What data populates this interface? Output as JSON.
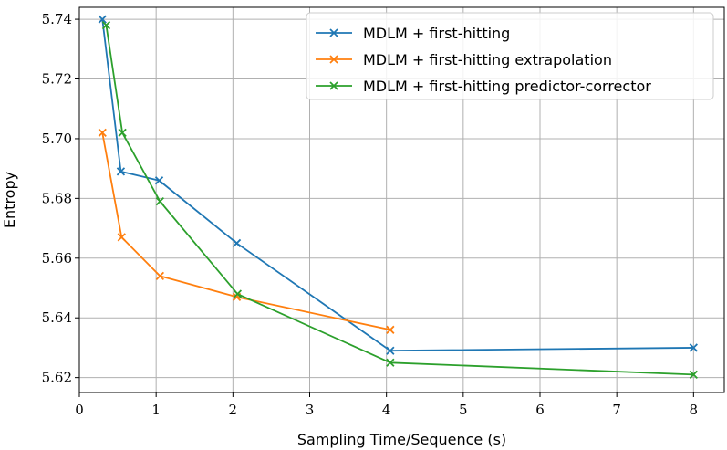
{
  "chart_data": {
    "type": "line",
    "title": "",
    "xlabel": "Sampling Time/Sequence (s)",
    "ylabel": "Entropy",
    "xlim": [
      0,
      8.4
    ],
    "ylim": [
      5.615,
      5.744
    ],
    "grid": true,
    "legend_position": "top-right",
    "x_ticks": [
      0,
      1,
      2,
      3,
      4,
      5,
      6,
      7,
      8
    ],
    "x_tick_labels": [
      "0",
      "1",
      "2",
      "3",
      "4",
      "5",
      "6",
      "7",
      "8"
    ],
    "y_ticks": [
      5.62,
      5.64,
      5.66,
      5.68,
      5.7,
      5.72,
      5.74
    ],
    "y_tick_labels": [
      "5.62",
      "5.64",
      "5.66",
      "5.68",
      "5.70",
      "5.72",
      "5.74"
    ],
    "series": [
      {
        "name": "MDLM + first-hitting",
        "color": "#1f77b4",
        "x": [
          0.3,
          0.54,
          1.04,
          2.05,
          4.05,
          8.0
        ],
        "y": [
          5.74,
          5.689,
          5.686,
          5.665,
          5.629,
          5.63
        ]
      },
      {
        "name": "MDLM + first-hitting extrapolation",
        "color": "#ff7f0e",
        "x": [
          0.3,
          0.55,
          1.05,
          2.05,
          4.05
        ],
        "y": [
          5.702,
          5.667,
          5.654,
          5.647,
          5.636
        ]
      },
      {
        "name": "MDLM + first-hitting predictor-corrector",
        "color": "#2ca02c",
        "x": [
          0.35,
          0.56,
          1.05,
          2.06,
          4.05,
          8.0
        ],
        "y": [
          5.738,
          5.702,
          5.679,
          5.648,
          5.625,
          5.621
        ]
      }
    ]
  }
}
